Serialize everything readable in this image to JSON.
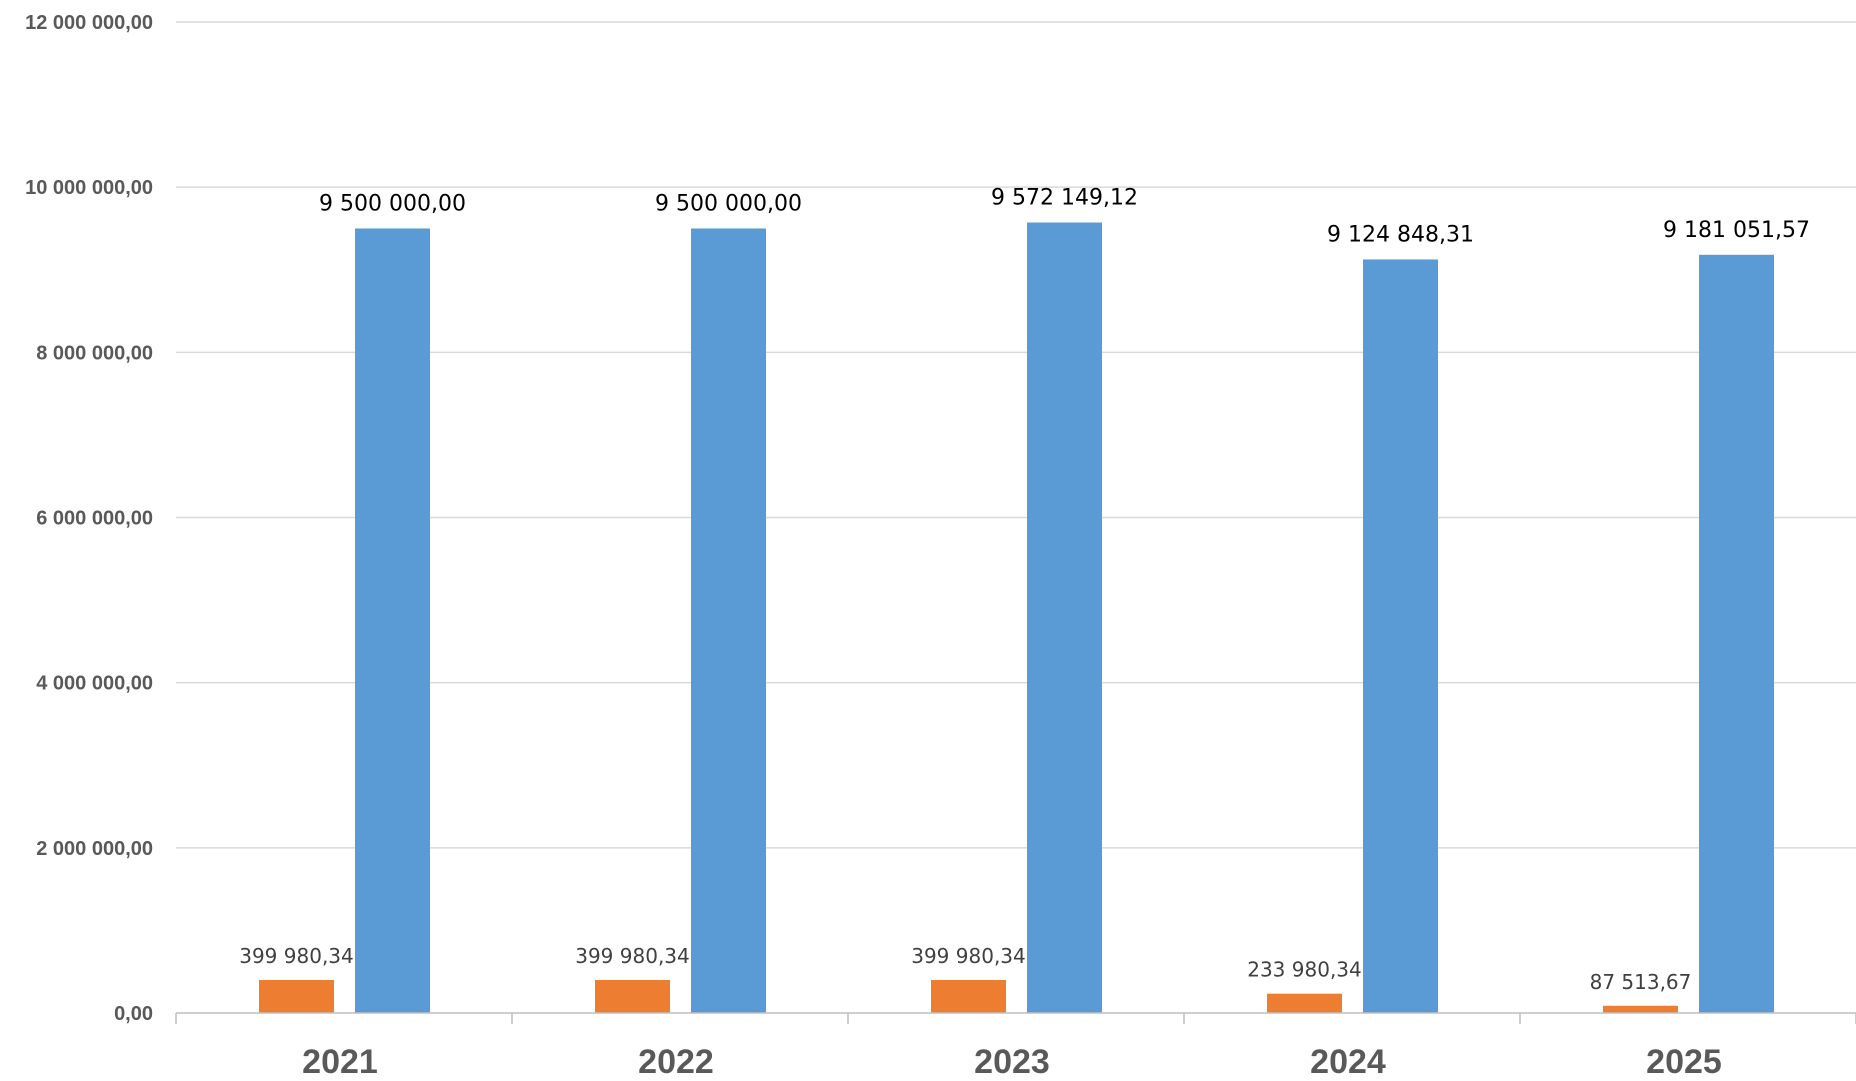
{
  "chart_data": {
    "type": "bar",
    "categories": [
      "2021",
      "2022",
      "2023",
      "2024",
      "2025"
    ],
    "series": [
      {
        "color": "#ED7D31",
        "values": [
          399980.34,
          399980.34,
          399980.34,
          233980.34,
          87513.67
        ],
        "labels": [
          "399 980,34",
          "399 980,34",
          "399 980,34",
          "233 980,34",
          "87 513,67"
        ]
      },
      {
        "color": "#5B9BD5",
        "values": [
          9500000.0,
          9500000.0,
          9572149.12,
          9124848.31,
          9181051.57
        ],
        "labels": [
          "9 500 000,00",
          "9 500 000,00",
          "9 572 149,12",
          "9 124 848,31",
          "9 181 051,57"
        ]
      }
    ],
    "ylim": [
      0,
      12000000
    ],
    "yticks": [
      0,
      2000000,
      4000000,
      6000000,
      8000000,
      10000000,
      12000000
    ],
    "ytick_labels": [
      "0,00",
      "2 000 000,00",
      "4 000 000,00",
      "6 000 000,00",
      "8 000 000,00",
      "10 000 000,00",
      "12 000 000,00"
    ],
    "grid": true,
    "title": "",
    "xlabel": "",
    "ylabel": ""
  }
}
